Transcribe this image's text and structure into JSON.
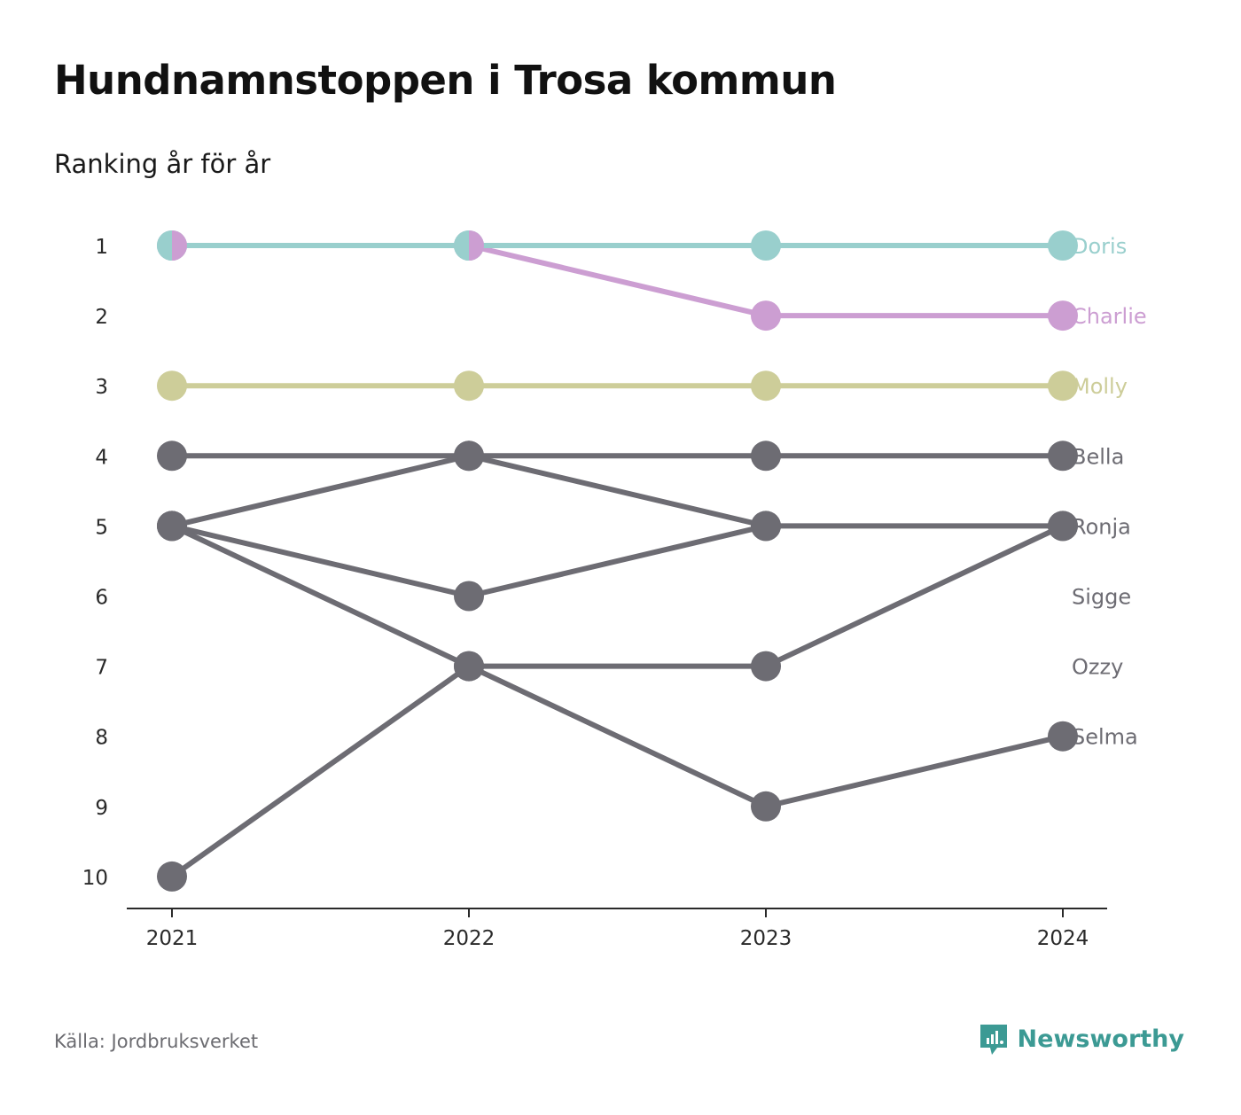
{
  "title": "Hundnamnstoppen i Trosa kommun",
  "subtitle": "Ranking år för år",
  "source": "Källa: Jordbruksverket",
  "brand": "Newsworthy",
  "brand_color": "#3c9a94",
  "chart_data": {
    "type": "line",
    "subtype": "bump",
    "x": [
      "2021",
      "2022",
      "2023",
      "2024"
    ],
    "y_ticks": [
      "1",
      "2",
      "3",
      "4",
      "5",
      "6",
      "7",
      "8",
      "9",
      "10"
    ],
    "ylim": [
      1,
      10
    ],
    "y_reversed": true,
    "grid": false,
    "series": [
      {
        "name": "Doris",
        "color": "#99cfcd",
        "values": [
          1,
          1,
          1,
          1
        ]
      },
      {
        "name": "Charlie",
        "color": "#cc9ed2",
        "values": [
          1,
          1,
          2,
          2
        ]
      },
      {
        "name": "Molly",
        "color": "#cdcd99",
        "values": [
          3,
          3,
          3,
          3
        ]
      },
      {
        "name": "Bella",
        "color": "#6d6c73",
        "values": [
          4,
          4,
          4,
          4
        ]
      },
      {
        "name": "Ronja",
        "color": "#6d6c73",
        "values": [
          5,
          4,
          5,
          5
        ]
      },
      {
        "name": "Sigge",
        "color": "#6d6c73",
        "values": [
          5,
          6,
          5,
          null
        ]
      },
      {
        "name": "Ozzy",
        "color": "#6d6c73",
        "values": [
          5,
          7,
          7,
          5
        ]
      },
      {
        "name": "Selma",
        "color": "#6d6c73",
        "values": [
          10,
          7,
          9,
          8
        ]
      }
    ],
    "end_labels": [
      {
        "name": "Doris",
        "rank": 1,
        "color": "#99cfcd"
      },
      {
        "name": "Charlie",
        "rank": 2,
        "color": "#cc9ed2"
      },
      {
        "name": "Molly",
        "rank": 3,
        "color": "#cdcd99"
      },
      {
        "name": "Bella",
        "rank": 4,
        "color": "#6d6c73"
      },
      {
        "name": "Ronja",
        "rank": 5,
        "color": "#6d6c73"
      },
      {
        "name": "Sigge",
        "rank": 6,
        "color": "#6d6c73"
      },
      {
        "name": "Ozzy",
        "rank": 7,
        "color": "#6d6c73"
      },
      {
        "name": "Selma",
        "rank": 8,
        "color": "#6d6c73"
      }
    ]
  }
}
